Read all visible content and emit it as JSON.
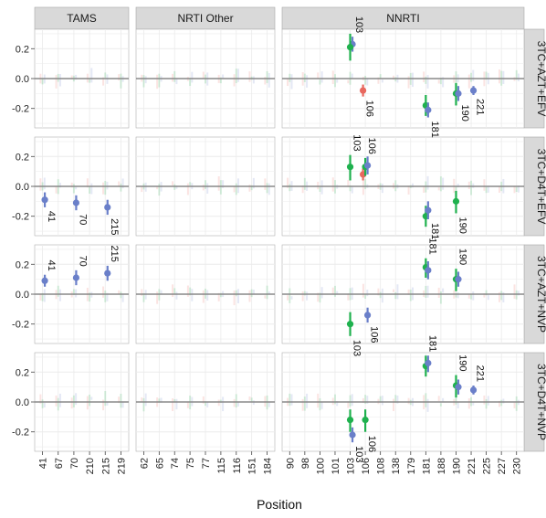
{
  "chart_data": {
    "type": "scatter",
    "title": "",
    "xlabel": "Position",
    "ylabel": "",
    "ylim": [
      -0.33,
      0.33
    ],
    "y_ticks": [
      -0.2,
      0.0,
      0.2
    ],
    "y_tick_labels": [
      "-0.2",
      "0.0",
      "0.2"
    ],
    "grid": true,
    "legend": "none",
    "colors": {
      "red": "#e8685e",
      "green": "#1fb14e",
      "blue": "#6a7fc9",
      "panel_bg": "#ffffff",
      "grid": "#ebebeb",
      "strip_bg": "#d9d9d9",
      "zero_line": "#888888"
    },
    "column_facets": [
      {
        "name": "TAMS",
        "positions": [
          "41",
          "67",
          "70",
          "210",
          "215",
          "219"
        ]
      },
      {
        "name": "NRTI Other",
        "positions": [
          "62",
          "65",
          "74",
          "75",
          "77",
          "115",
          "116",
          "151",
          "184"
        ]
      },
      {
        "name": "NNRTI",
        "positions": [
          "90",
          "98",
          "100",
          "101",
          "103",
          "106",
          "108",
          "138",
          "179",
          "181",
          "188",
          "190",
          "221",
          "225",
          "227",
          "230"
        ]
      }
    ],
    "row_facets": [
      "3TC+AZT+EFV",
      "3TC+D4T+EFV",
      "3TC+AZT+NVP",
      "3TC+D4T+NVP"
    ],
    "highlighted_points": [
      {
        "row": 0,
        "col": 2,
        "pos": "103",
        "series": "blue",
        "y": 0.23,
        "lo": 0.18,
        "hi": 0.28,
        "label": "103"
      },
      {
        "row": 0,
        "col": 2,
        "pos": "103",
        "series": "green",
        "y": 0.21,
        "lo": 0.12,
        "hi": 0.3,
        "label": ""
      },
      {
        "row": 0,
        "col": 2,
        "pos": "106",
        "series": "red",
        "y": -0.08,
        "lo": -0.12,
        "hi": -0.04,
        "label": "106"
      },
      {
        "row": 0,
        "col": 2,
        "pos": "181",
        "series": "green",
        "y": -0.18,
        "lo": -0.25,
        "hi": -0.11,
        "label": ""
      },
      {
        "row": 0,
        "col": 2,
        "pos": "181",
        "series": "blue",
        "y": -0.21,
        "lo": -0.26,
        "hi": -0.16,
        "label": "181"
      },
      {
        "row": 0,
        "col": 2,
        "pos": "190",
        "series": "green",
        "y": -0.1,
        "lo": -0.18,
        "hi": -0.03,
        "label": ""
      },
      {
        "row": 0,
        "col": 2,
        "pos": "190",
        "series": "blue",
        "y": -0.1,
        "lo": -0.15,
        "hi": -0.05,
        "label": "190"
      },
      {
        "row": 0,
        "col": 2,
        "pos": "221",
        "series": "blue",
        "y": -0.08,
        "lo": -0.11,
        "hi": -0.05,
        "label": "221"
      },
      {
        "row": 1,
        "col": 0,
        "pos": "41",
        "series": "blue",
        "y": -0.09,
        "lo": -0.14,
        "hi": -0.04,
        "label": "41"
      },
      {
        "row": 1,
        "col": 0,
        "pos": "70",
        "series": "blue",
        "y": -0.11,
        "lo": -0.16,
        "hi": -0.06,
        "label": "70"
      },
      {
        "row": 1,
        "col": 0,
        "pos": "215",
        "series": "blue",
        "y": -0.14,
        "lo": -0.19,
        "hi": -0.09,
        "label": "215"
      },
      {
        "row": 1,
        "col": 2,
        "pos": "103",
        "series": "green",
        "y": 0.13,
        "lo": 0.04,
        "hi": 0.21,
        "label": "103"
      },
      {
        "row": 1,
        "col": 2,
        "pos": "106",
        "series": "red",
        "y": 0.08,
        "lo": 0.04,
        "hi": 0.12,
        "label": ""
      },
      {
        "row": 1,
        "col": 2,
        "pos": "106",
        "series": "green",
        "y": 0.13,
        "lo": 0.07,
        "hi": 0.19,
        "label": "106"
      },
      {
        "row": 1,
        "col": 2,
        "pos": "106",
        "series": "blue",
        "y": 0.14,
        "lo": 0.08,
        "hi": 0.2,
        "label": ""
      },
      {
        "row": 1,
        "col": 2,
        "pos": "181",
        "series": "green",
        "y": -0.2,
        "lo": -0.27,
        "hi": -0.13,
        "label": ""
      },
      {
        "row": 1,
        "col": 2,
        "pos": "181",
        "series": "blue",
        "y": -0.16,
        "lo": -0.22,
        "hi": -0.1,
        "label": "181"
      },
      {
        "row": 1,
        "col": 2,
        "pos": "190",
        "series": "green",
        "y": -0.1,
        "lo": -0.18,
        "hi": -0.03,
        "label": "190"
      },
      {
        "row": 2,
        "col": 0,
        "pos": "41",
        "series": "blue",
        "y": 0.09,
        "lo": 0.05,
        "hi": 0.13,
        "label": "41"
      },
      {
        "row": 2,
        "col": 0,
        "pos": "70",
        "series": "blue",
        "y": 0.11,
        "lo": 0.06,
        "hi": 0.16,
        "label": "70"
      },
      {
        "row": 2,
        "col": 0,
        "pos": "215",
        "series": "blue",
        "y": 0.14,
        "lo": 0.09,
        "hi": 0.19,
        "label": "215"
      },
      {
        "row": 2,
        "col": 2,
        "pos": "103",
        "series": "green",
        "y": -0.2,
        "lo": -0.28,
        "hi": -0.12,
        "label": "103"
      },
      {
        "row": 2,
        "col": 2,
        "pos": "106",
        "series": "blue",
        "y": -0.14,
        "lo": -0.19,
        "hi": -0.09,
        "label": "106"
      },
      {
        "row": 2,
        "col": 2,
        "pos": "181",
        "series": "green",
        "y": 0.18,
        "lo": 0.11,
        "hi": 0.24,
        "label": "181"
      },
      {
        "row": 2,
        "col": 2,
        "pos": "181",
        "series": "blue",
        "y": 0.16,
        "lo": 0.1,
        "hi": 0.22,
        "label": ""
      },
      {
        "row": 2,
        "col": 2,
        "pos": "190",
        "series": "green",
        "y": 0.1,
        "lo": 0.02,
        "hi": 0.17,
        "label": "190"
      },
      {
        "row": 2,
        "col": 2,
        "pos": "190",
        "series": "blue",
        "y": 0.1,
        "lo": 0.05,
        "hi": 0.15,
        "label": ""
      },
      {
        "row": 3,
        "col": 2,
        "pos": "103",
        "series": "green",
        "y": -0.12,
        "lo": -0.2,
        "hi": -0.05,
        "label": ""
      },
      {
        "row": 3,
        "col": 2,
        "pos": "103",
        "series": "blue",
        "y": -0.22,
        "lo": -0.27,
        "hi": -0.17,
        "label": "103"
      },
      {
        "row": 3,
        "col": 2,
        "pos": "106",
        "series": "green",
        "y": -0.12,
        "lo": -0.2,
        "hi": -0.05,
        "label": "106"
      },
      {
        "row": 3,
        "col": 2,
        "pos": "181",
        "series": "green",
        "y": 0.24,
        "lo": 0.17,
        "hi": 0.31,
        "label": "181"
      },
      {
        "row": 3,
        "col": 2,
        "pos": "181",
        "series": "blue",
        "y": 0.26,
        "lo": 0.2,
        "hi": 0.31,
        "label": ""
      },
      {
        "row": 3,
        "col": 2,
        "pos": "190",
        "series": "green",
        "y": 0.11,
        "lo": 0.03,
        "hi": 0.18,
        "label": "190"
      },
      {
        "row": 3,
        "col": 2,
        "pos": "190",
        "series": "blue",
        "y": 0.1,
        "lo": 0.05,
        "hi": 0.15,
        "label": ""
      },
      {
        "row": 3,
        "col": 2,
        "pos": "221",
        "series": "blue",
        "y": 0.08,
        "lo": 0.05,
        "hi": 0.11,
        "label": "221"
      }
    ]
  }
}
